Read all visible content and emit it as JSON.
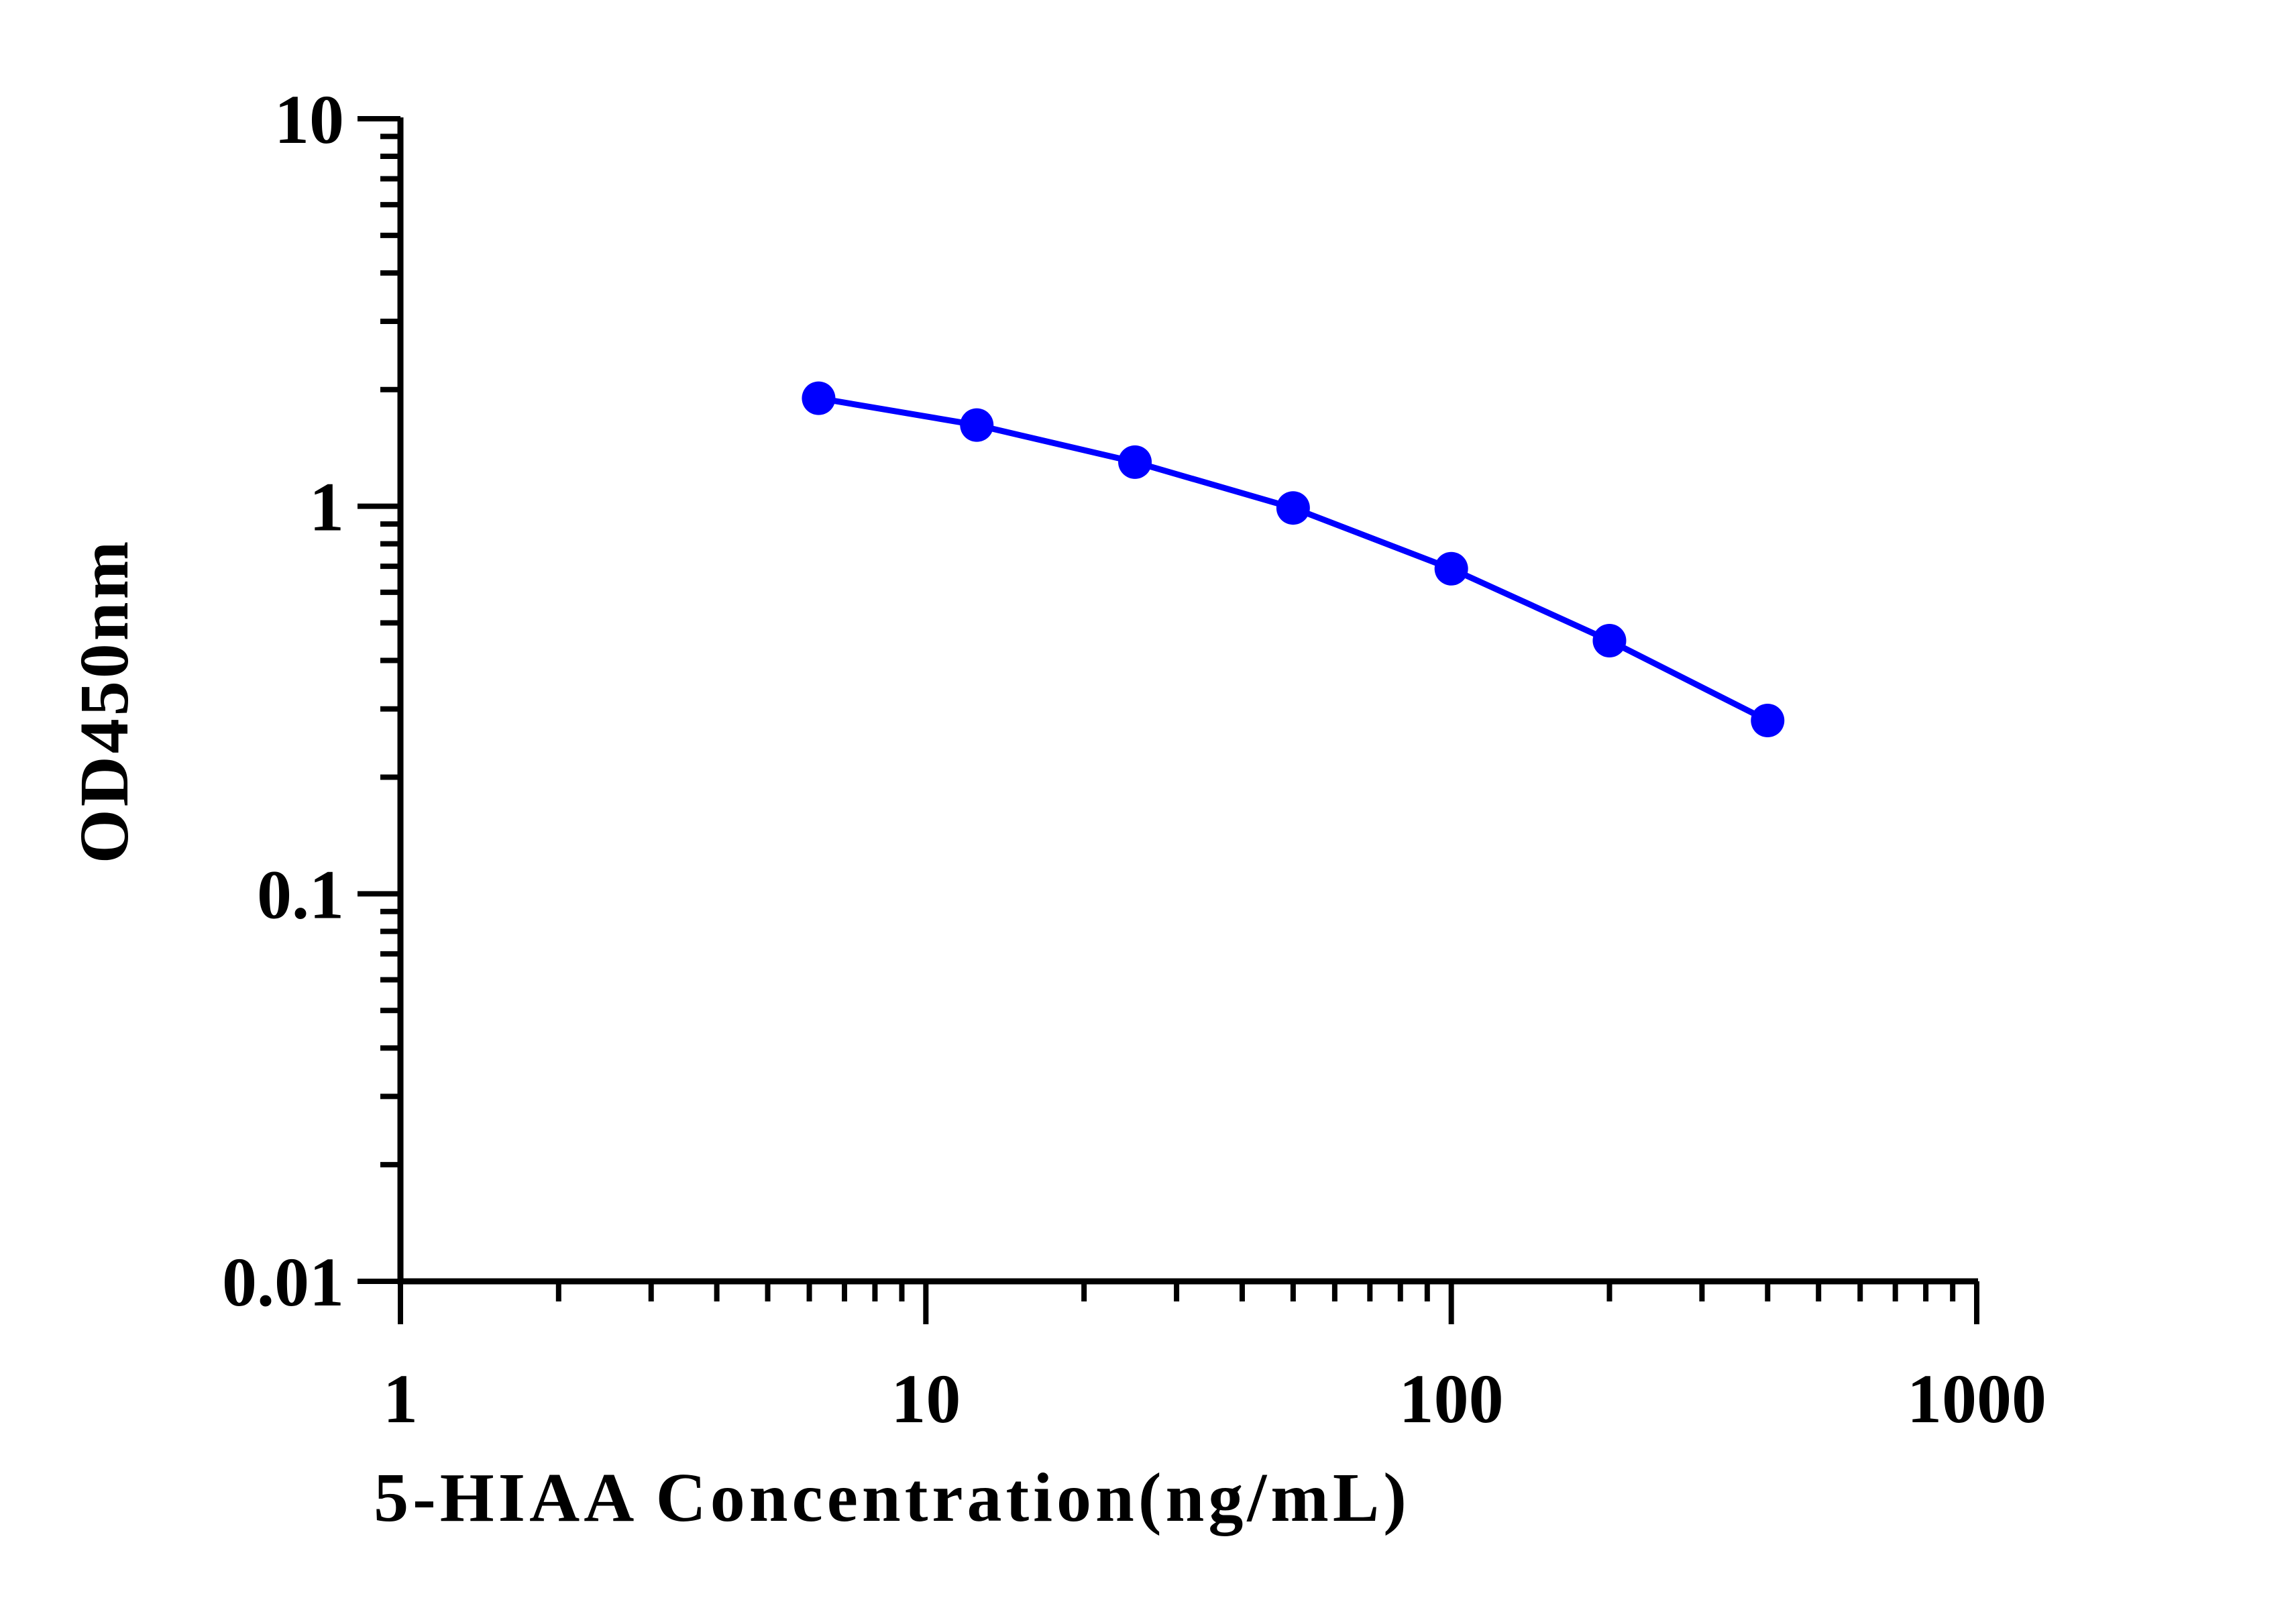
{
  "chart_data": {
    "type": "line",
    "title": "",
    "xlabel": "5-HIAA Concentration(ng/mL)",
    "ylabel": "OD450nm",
    "x_scale": "log",
    "y_scale": "log",
    "xlim": [
      1,
      1000
    ],
    "ylim": [
      0.01,
      10
    ],
    "x_ticks": [
      1,
      10,
      100,
      1000
    ],
    "x_tick_labels": [
      "1",
      "10",
      "100",
      "1000"
    ],
    "y_ticks": [
      0.01,
      0.1,
      1,
      10
    ],
    "y_tick_labels": [
      "0.01",
      "0.1",
      "1",
      "10"
    ],
    "grid": false,
    "legend": "none",
    "series": [
      {
        "color": "#0000ff",
        "marker": "circle",
        "x": [
          6.25,
          12.5,
          25,
          50,
          100,
          200,
          400
        ],
        "y": [
          1.9,
          1.62,
          1.3,
          0.99,
          0.69,
          0.45,
          0.28
        ]
      }
    ]
  }
}
